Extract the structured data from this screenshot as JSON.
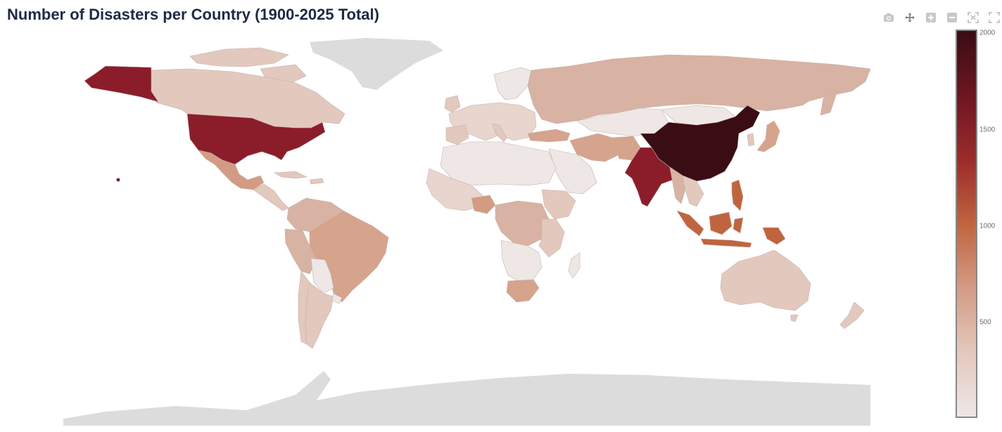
{
  "title": "Number of Disasters per Country (1900-2025 Total)",
  "modebar": [
    {
      "name": "camera-icon",
      "label": "Download plot as a png"
    },
    {
      "name": "pan-icon",
      "label": "Pan"
    },
    {
      "name": "zoom-in-icon",
      "label": "Zoom in"
    },
    {
      "name": "zoom-out-icon",
      "label": "Zoom out"
    },
    {
      "name": "reset-view-icon",
      "label": "Reset"
    },
    {
      "name": "autoscale-icon",
      "label": "Autoscale"
    }
  ],
  "colorbar": {
    "min": 0,
    "max": 2000,
    "ticks": [
      "2000",
      "1500",
      "1000",
      "500"
    ],
    "colors": [
      "#eee7e5",
      "#e3c8bd",
      "#d39b83",
      "#c0643f",
      "#9b2b2b",
      "#6d1621",
      "#3a0c14"
    ]
  },
  "colors": {
    "no_data": "#dcdcdc",
    "ocean": "#ffffff",
    "border": "#c4b4ad",
    "title": "#1f2a44"
  }
}
